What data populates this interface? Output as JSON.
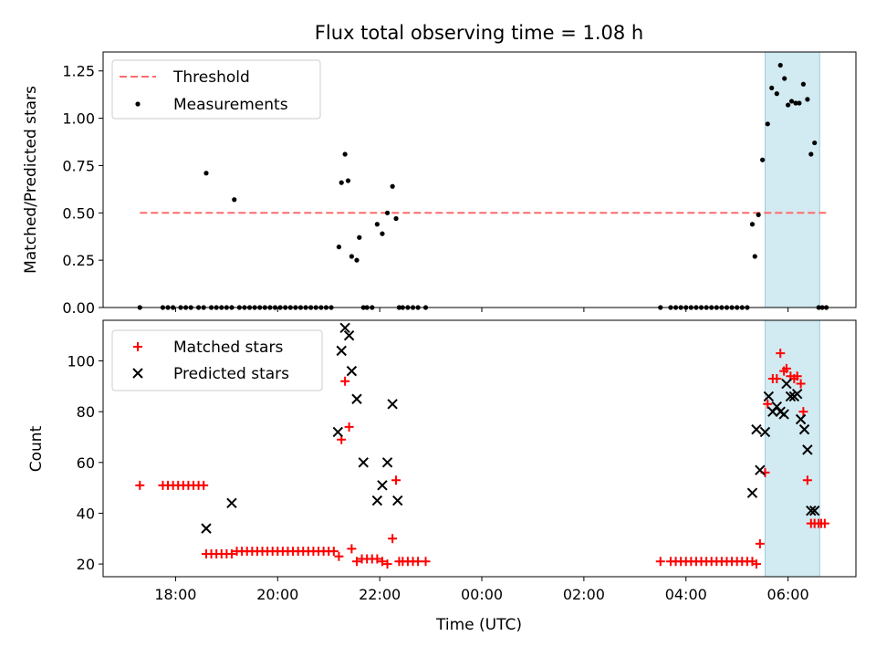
{
  "title": "Flux total observing time = 1.08 h",
  "xlabel": "Time (UTC)",
  "x_tick_labels": [
    "18:00",
    "20:00",
    "22:00",
    "00:00",
    "02:00",
    "04:00",
    "06:00"
  ],
  "colors": {
    "threshold": "#ff6b6b",
    "measurement": "#000000",
    "matched": "#ff0000",
    "predicted": "#000000",
    "highlight": "#add8e6"
  },
  "chart_data": [
    {
      "type": "scatter",
      "ylabel": "Matched/Predicted stars",
      "ylim": [
        0,
        1.35
      ],
      "y_ticks": [
        "0.00",
        "0.25",
        "0.50",
        "0.75",
        "1.00",
        "1.25"
      ],
      "xlim_hours": [
        16.58,
        31.33
      ],
      "x_unit": "hours UTC (values above 24 fall on the next day)",
      "highlight_span": [
        29.55,
        30.62
      ],
      "threshold": {
        "name": "Threshold",
        "value": 0.5,
        "x_range": [
          17.3,
          30.75
        ]
      },
      "legend": [
        "Threshold",
        "Measurements"
      ],
      "legend_position": "top-left",
      "series": [
        {
          "name": "Measurements",
          "x": [
            17.3,
            17.75,
            17.85,
            17.95,
            18.1,
            18.2,
            18.3,
            18.45,
            18.55,
            18.6,
            18.7,
            18.8,
            18.9,
            19.0,
            19.1,
            19.15,
            19.25,
            19.35,
            19.45,
            19.55,
            19.65,
            19.75,
            19.85,
            19.95,
            20.05,
            20.15,
            20.25,
            20.35,
            20.45,
            20.55,
            20.65,
            20.75,
            20.85,
            20.95,
            21.05,
            21.2,
            21.25,
            21.32,
            21.38,
            21.45,
            21.55,
            21.6,
            21.68,
            21.75,
            21.85,
            21.95,
            22.05,
            22.15,
            22.25,
            22.32,
            22.38,
            22.45,
            22.55,
            22.65,
            22.75,
            22.9,
            27.5,
            27.7,
            27.8,
            27.9,
            28.0,
            28.1,
            28.2,
            28.3,
            28.4,
            28.5,
            28.6,
            28.7,
            28.8,
            28.9,
            29.0,
            29.1,
            29.2,
            29.3,
            29.35,
            29.42,
            29.5,
            29.6,
            29.68,
            29.78,
            29.85,
            29.93,
            30.0,
            30.07,
            30.15,
            30.22,
            30.3,
            30.38,
            30.45,
            30.52,
            30.6,
            30.67,
            30.75
          ],
          "y": [
            0.0,
            0.0,
            0.0,
            0.0,
            0.0,
            0.0,
            0.0,
            0.0,
            0.0,
            0.71,
            0.0,
            0.0,
            0.0,
            0.0,
            0.0,
            0.57,
            0.0,
            0.0,
            0.0,
            0.0,
            0.0,
            0.0,
            0.0,
            0.0,
            0.0,
            0.0,
            0.0,
            0.0,
            0.0,
            0.0,
            0.0,
            0.0,
            0.0,
            0.0,
            0.0,
            0.32,
            0.66,
            0.81,
            0.67,
            0.27,
            0.25,
            0.37,
            0.0,
            0.0,
            0.0,
            0.44,
            0.39,
            0.5,
            0.64,
            0.47,
            0.0,
            0.0,
            0.0,
            0.0,
            0.0,
            0.0,
            0.0,
            0.0,
            0.0,
            0.0,
            0.0,
            0.0,
            0.0,
            0.0,
            0.0,
            0.0,
            0.0,
            0.0,
            0.0,
            0.0,
            0.0,
            0.0,
            0.0,
            0.44,
            0.27,
            0.49,
            0.78,
            0.97,
            1.16,
            1.13,
            1.28,
            1.21,
            1.07,
            1.09,
            1.08,
            1.08,
            1.18,
            1.1,
            0.81,
            0.87,
            0.0,
            0.0,
            0.0
          ]
        }
      ]
    },
    {
      "type": "scatter",
      "ylabel": "Count",
      "ylim": [
        15,
        116
      ],
      "y_ticks": [
        "20",
        "40",
        "60",
        "80",
        "100"
      ],
      "xlim_hours": [
        16.58,
        31.33
      ],
      "highlight_span": [
        29.55,
        30.62
      ],
      "legend": [
        "Matched stars",
        "Predicted stars"
      ],
      "legend_position": "top-left",
      "series": [
        {
          "name": "Matched stars",
          "marker": "+",
          "x": [
            17.3,
            17.75,
            17.85,
            17.95,
            18.05,
            18.15,
            18.25,
            18.35,
            18.45,
            18.55,
            18.6,
            18.7,
            18.8,
            18.9,
            19.0,
            19.1,
            19.2,
            19.3,
            19.4,
            19.5,
            19.6,
            19.7,
            19.8,
            19.9,
            20.0,
            20.1,
            20.2,
            20.3,
            20.4,
            20.5,
            20.6,
            20.7,
            20.8,
            20.9,
            21.0,
            21.1,
            21.2,
            21.25,
            21.32,
            21.4,
            21.45,
            21.55,
            21.65,
            21.75,
            21.85,
            21.95,
            22.05,
            22.15,
            22.25,
            22.32,
            22.38,
            22.45,
            22.55,
            22.65,
            22.75,
            22.9,
            27.5,
            27.7,
            27.8,
            27.9,
            28.0,
            28.1,
            28.2,
            28.3,
            28.4,
            28.5,
            28.6,
            28.7,
            28.8,
            28.9,
            29.0,
            29.1,
            29.2,
            29.3,
            29.38,
            29.45,
            29.55,
            29.6,
            29.7,
            29.78,
            29.85,
            29.92,
            29.97,
            30.05,
            30.12,
            30.18,
            30.25,
            30.3,
            30.38,
            30.45,
            30.52,
            30.6,
            30.65,
            30.72
          ],
          "y": [
            51,
            51,
            51,
            51,
            51,
            51,
            51,
            51,
            51,
            51,
            24,
            24,
            24,
            24,
            24,
            24,
            25,
            25,
            25,
            25,
            25,
            25,
            25,
            25,
            25,
            25,
            25,
            25,
            25,
            25,
            25,
            25,
            25,
            25,
            25,
            25,
            23,
            69,
            92,
            74,
            26,
            21,
            22,
            22,
            22,
            22,
            21,
            20,
            30,
            53,
            21,
            21,
            21,
            21,
            21,
            21,
            21,
            21,
            21,
            21,
            21,
            21,
            21,
            21,
            21,
            21,
            21,
            21,
            21,
            21,
            21,
            21,
            21,
            21,
            20,
            28,
            56,
            83,
            93,
            93,
            103,
            96,
            97,
            94,
            93,
            94,
            91,
            80,
            53,
            36,
            36,
            36,
            36,
            36
          ]
        },
        {
          "name": "Predicted stars",
          "marker": "x",
          "x": [
            18.6,
            19.1,
            21.18,
            21.25,
            21.32,
            21.4,
            21.45,
            21.55,
            21.68,
            21.95,
            22.05,
            22.15,
            22.25,
            22.35,
            29.3,
            29.38,
            29.45,
            29.55,
            29.62,
            29.7,
            29.78,
            29.85,
            29.92,
            29.97,
            30.05,
            30.12,
            30.18,
            30.25,
            30.32,
            30.38,
            30.45,
            30.52
          ],
          "y": [
            34,
            44,
            72,
            104,
            113,
            110,
            96,
            85,
            60,
            45,
            51,
            60,
            83,
            45,
            48,
            73,
            57,
            72,
            86,
            80,
            82,
            80,
            79,
            91,
            86,
            86,
            87,
            77,
            73,
            65,
            41,
            41
          ]
        }
      ]
    }
  ]
}
